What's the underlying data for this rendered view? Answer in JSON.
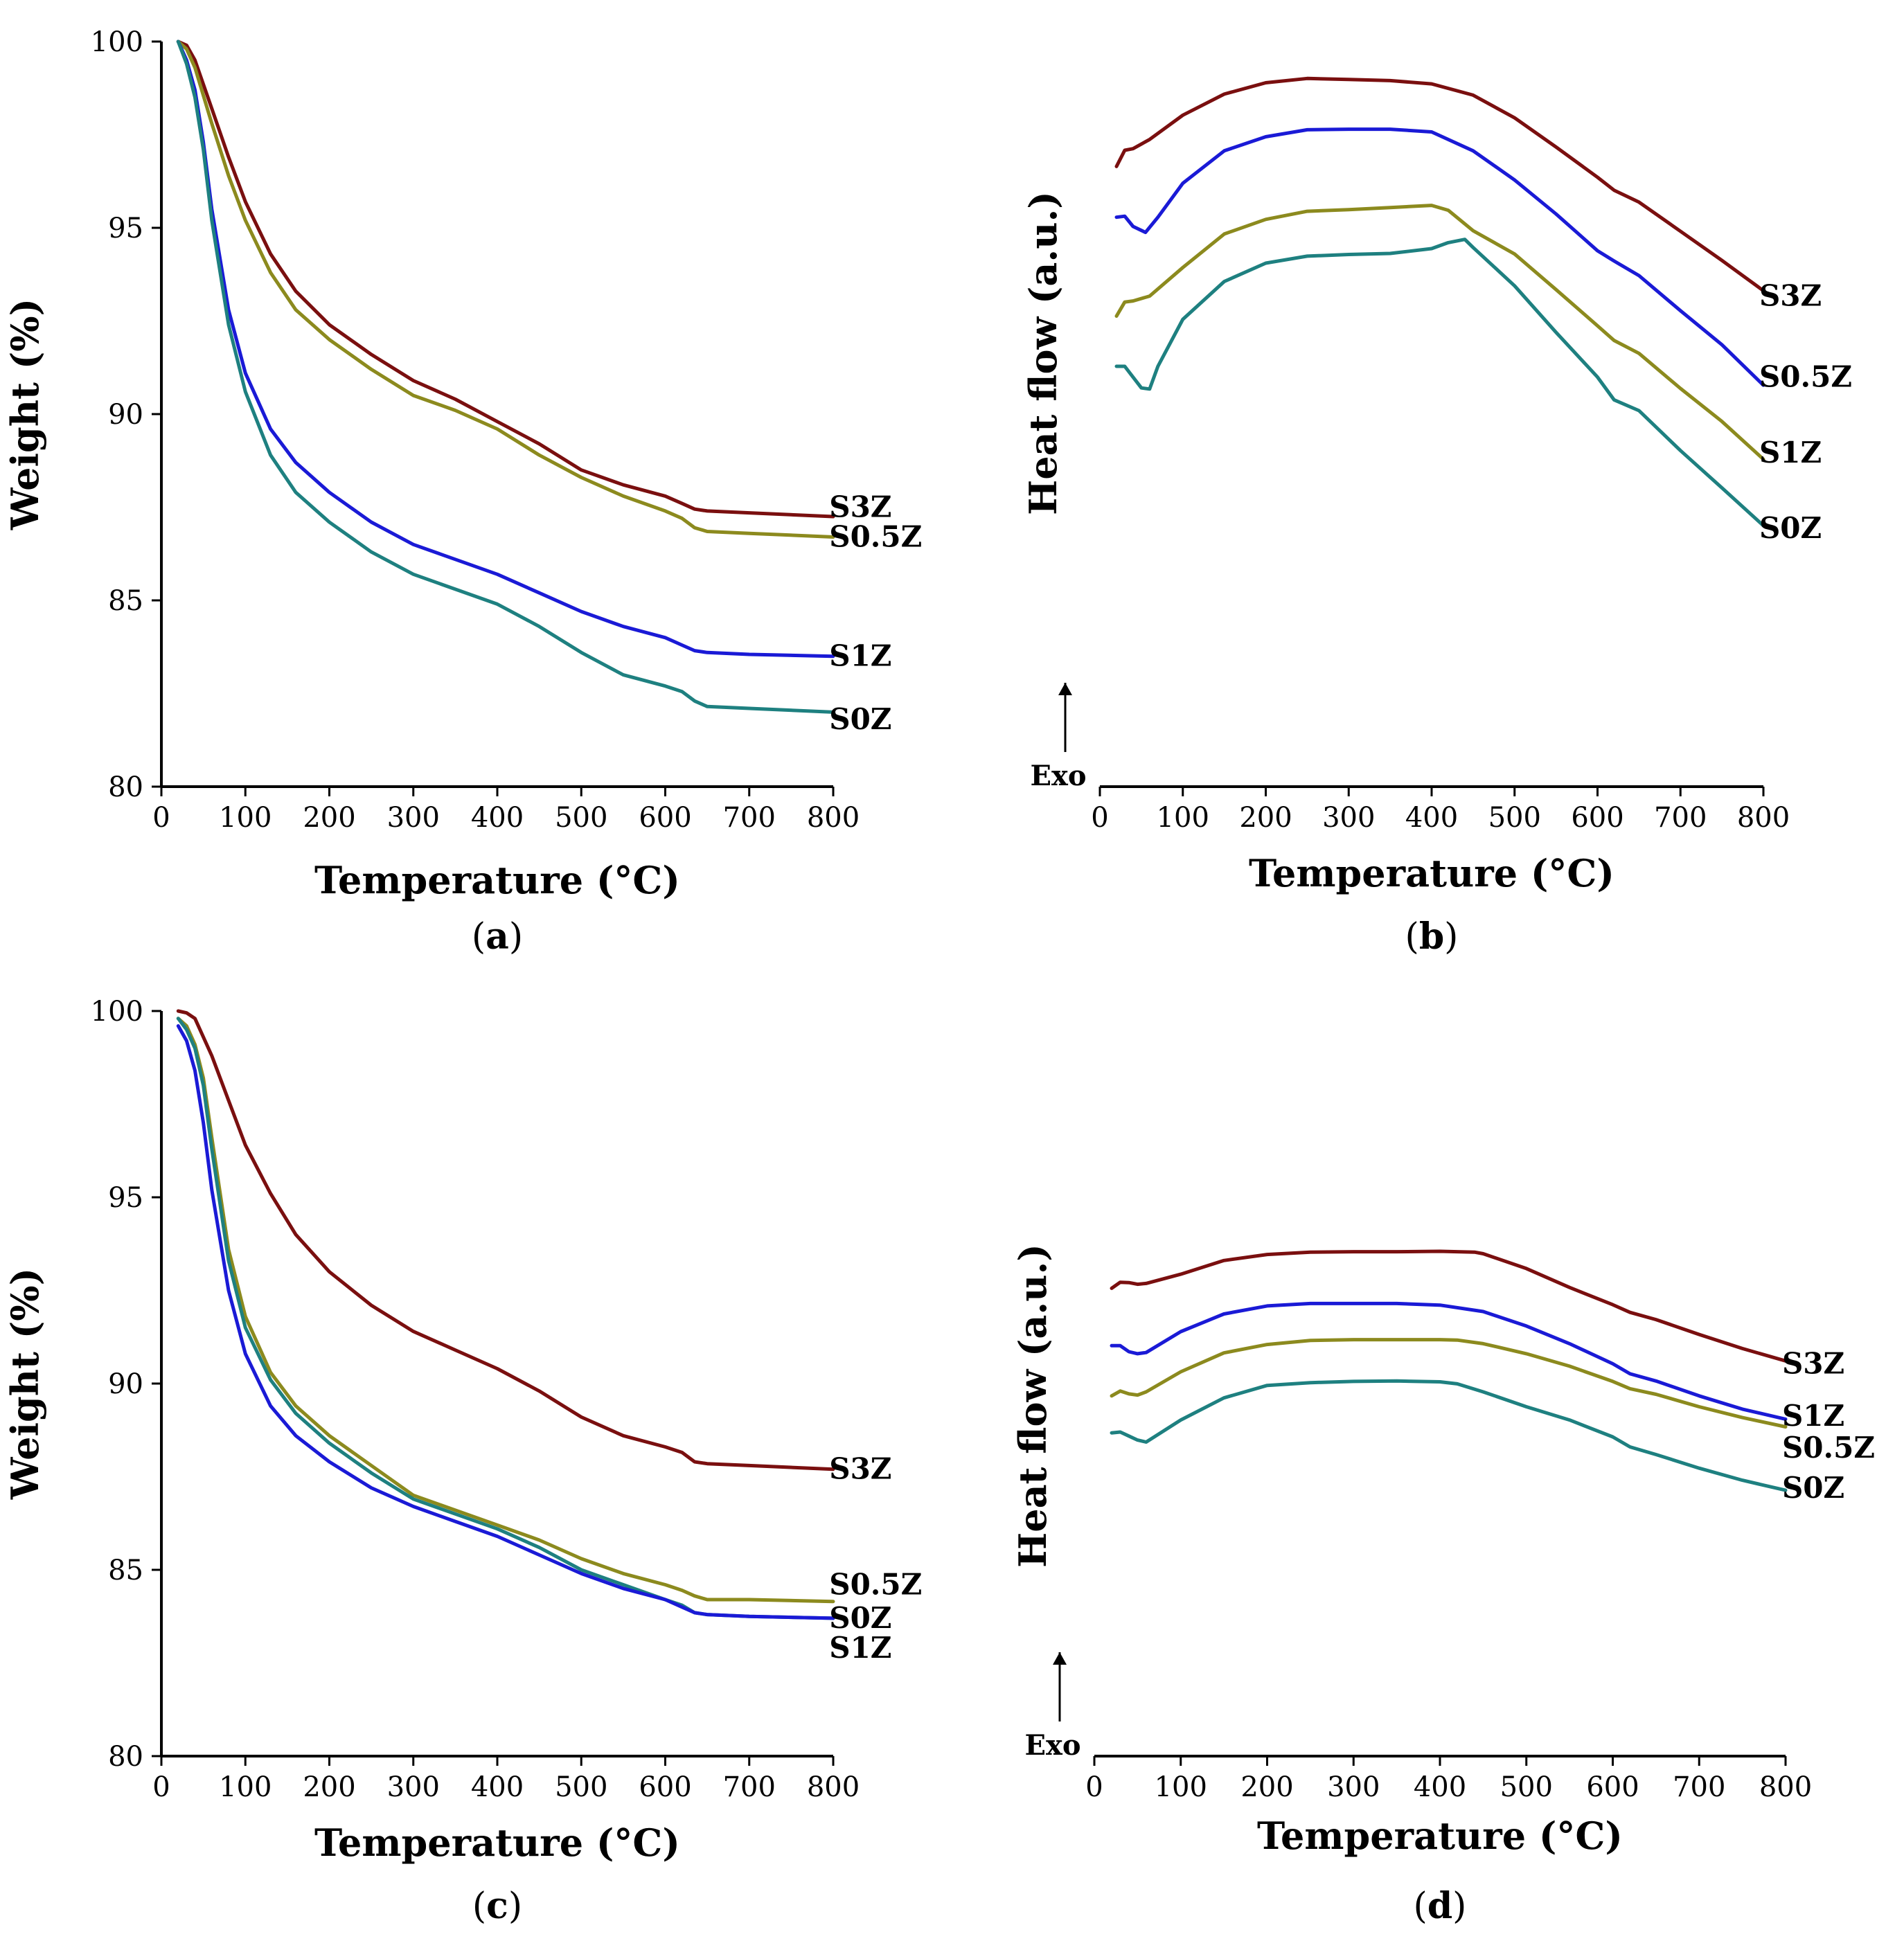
{
  "chart_data": [
    {
      "id": "a",
      "type": "line",
      "caption_letter": "a",
      "xlabel": "Temperature (°C)",
      "ylabel": "Weight (%)",
      "xlim": [
        0,
        800
      ],
      "ylim": [
        80,
        100
      ],
      "xticks": [
        0,
        100,
        200,
        300,
        400,
        500,
        600,
        700,
        800
      ],
      "yticks": [
        80,
        85,
        90,
        95,
        100
      ],
      "series": [
        {
          "name": "S3Z",
          "color": "#7a0f0f",
          "x": [
            20,
            30,
            40,
            60,
            80,
            100,
            130,
            160,
            200,
            250,
            300,
            350,
            400,
            450,
            500,
            550,
            600,
            620,
            635,
            650,
            700,
            800
          ],
          "y": [
            100,
            99.9,
            99.5,
            98.2,
            96.9,
            95.7,
            94.3,
            93.3,
            92.4,
            91.6,
            90.9,
            90.4,
            89.8,
            89.2,
            88.5,
            88.1,
            87.8,
            87.6,
            87.45,
            87.4,
            87.35,
            87.25
          ]
        },
        {
          "name": "S0.5Z",
          "color": "#8c8a1e",
          "x": [
            20,
            30,
            40,
            60,
            80,
            100,
            130,
            160,
            200,
            250,
            300,
            350,
            400,
            450,
            500,
            550,
            600,
            620,
            635,
            650,
            700,
            800
          ],
          "y": [
            100,
            99.8,
            99.3,
            97.8,
            96.4,
            95.2,
            93.8,
            92.8,
            92.0,
            91.2,
            90.5,
            90.1,
            89.6,
            88.9,
            88.3,
            87.8,
            87.4,
            87.2,
            86.95,
            86.85,
            86.8,
            86.7
          ]
        },
        {
          "name": "S1Z",
          "color": "#1a1ad6",
          "x": [
            20,
            30,
            40,
            50,
            60,
            80,
            100,
            130,
            160,
            200,
            250,
            300,
            350,
            400,
            450,
            500,
            550,
            600,
            620,
            635,
            650,
            700,
            800
          ],
          "y": [
            100,
            99.5,
            98.7,
            97.3,
            95.5,
            92.8,
            91.1,
            89.6,
            88.7,
            87.9,
            87.1,
            86.5,
            86.1,
            85.7,
            85.2,
            84.7,
            84.3,
            84.0,
            83.8,
            83.65,
            83.6,
            83.55,
            83.5
          ]
        },
        {
          "name": "S0Z",
          "color": "#1e8080",
          "x": [
            20,
            30,
            40,
            50,
            60,
            80,
            100,
            130,
            160,
            200,
            250,
            300,
            350,
            400,
            450,
            500,
            550,
            600,
            620,
            635,
            650,
            700,
            800
          ],
          "y": [
            100,
            99.4,
            98.5,
            97.1,
            95.2,
            92.4,
            90.6,
            88.9,
            87.9,
            87.1,
            86.3,
            85.7,
            85.3,
            84.9,
            84.3,
            83.6,
            83.0,
            82.7,
            82.55,
            82.3,
            82.15,
            82.1,
            82.0
          ]
        }
      ],
      "labels": [
        {
          "text": "S3Z",
          "at": [
            820,
            87.5
          ]
        },
        {
          "text": "S0.5Z",
          "at": [
            820,
            86.7
          ]
        },
        {
          "text": "S1Z",
          "at": [
            820,
            83.5
          ]
        },
        {
          "text": "S0Z",
          "at": [
            820,
            81.8
          ]
        }
      ]
    },
    {
      "id": "b",
      "type": "line",
      "caption_letter": "b",
      "xlabel": "Temperature (°C)",
      "ylabel": "Heat flow (a.u.)",
      "exo_label": "Exo",
      "xlim": [
        0,
        800
      ],
      "ylim": [
        0,
        100
      ],
      "xticks": [
        0,
        100,
        200,
        300,
        400,
        500,
        600,
        700,
        800
      ],
      "series": [
        {
          "name": "S3Z",
          "color": "#7a0f0f",
          "x": [
            20,
            30,
            40,
            60,
            100,
            150,
            200,
            250,
            300,
            350,
            400,
            450,
            500,
            550,
            600,
            620,
            650,
            700,
            750,
            800
          ],
          "y": [
            82,
            85,
            85.3,
            87,
            91.5,
            95.4,
            97.5,
            98.3,
            98.1,
            97.9,
            97.3,
            95.2,
            91.0,
            85.6,
            80.0,
            77.6,
            75.4,
            70.0,
            64.6,
            59.0
          ]
        },
        {
          "name": "S0.5Z",
          "color": "#1a1ad6",
          "x": [
            20,
            30,
            40,
            55,
            70,
            100,
            150,
            200,
            250,
            300,
            350,
            400,
            450,
            500,
            550,
            600,
            620,
            650,
            700,
            750,
            800
          ],
          "y": [
            72.6,
            72.8,
            70.9,
            69.8,
            72.6,
            78.9,
            84.9,
            87.5,
            88.8,
            88.9,
            88.9,
            88.4,
            84.9,
            79.5,
            73.2,
            66.4,
            64.5,
            61.8,
            55.3,
            49.0,
            41.5
          ]
        },
        {
          "name": "S1Z",
          "color": "#8c8a1e",
          "x": [
            20,
            30,
            40,
            60,
            100,
            150,
            200,
            250,
            300,
            350,
            400,
            420,
            450,
            500,
            550,
            600,
            620,
            650,
            700,
            750,
            800
          ],
          "y": [
            54.3,
            56.9,
            57.1,
            58,
            63.3,
            69.5,
            72.2,
            73.7,
            74.0,
            74.4,
            74.8,
            73.9,
            70.1,
            65.8,
            59.2,
            52.5,
            49.8,
            47.4,
            40.9,
            34.8,
            27.8
          ]
        },
        {
          "name": "S0Z",
          "color": "#1e8080",
          "x": [
            20,
            30,
            40,
            50,
            60,
            70,
            100,
            150,
            200,
            250,
            300,
            350,
            400,
            420,
            440,
            450,
            500,
            550,
            600,
            620,
            650,
            700,
            750,
            800
          ],
          "y": [
            45,
            45,
            43,
            41,
            40.8,
            45,
            53.7,
            60.7,
            64.1,
            65.4,
            65.7,
            65.9,
            66.8,
            67.9,
            68.5,
            67.0,
            59.9,
            51.3,
            43.0,
            38.8,
            36.8,
            29.4,
            22.5,
            15.5
          ]
        }
      ],
      "labels": [
        {
          "text": "S3Z",
          "at": [
            820,
            58
          ]
        },
        {
          "text": "S0.5Z",
          "at": [
            820,
            43
          ]
        },
        {
          "text": "S1Z",
          "at": [
            820,
            29
          ]
        },
        {
          "text": "S0Z",
          "at": [
            820,
            15
          ]
        }
      ]
    },
    {
      "id": "c",
      "type": "line",
      "caption_letter": "c",
      "xlabel": "Temperature (°C)",
      "ylabel": "Weight (%)",
      "xlim": [
        0,
        800
      ],
      "ylim": [
        80,
        100
      ],
      "xticks": [
        0,
        100,
        200,
        300,
        400,
        500,
        600,
        700,
        800
      ],
      "yticks": [
        80,
        85,
        90,
        95,
        100
      ],
      "series": [
        {
          "name": "S3Z",
          "color": "#7a0f0f",
          "x": [
            20,
            30,
            40,
            60,
            80,
            100,
            130,
            160,
            200,
            250,
            300,
            350,
            400,
            450,
            500,
            550,
            600,
            620,
            635,
            650,
            700,
            800
          ],
          "y": [
            100,
            99.95,
            99.8,
            98.8,
            97.6,
            96.4,
            95.1,
            94.0,
            93.0,
            92.1,
            91.4,
            90.9,
            90.4,
            89.8,
            89.1,
            88.6,
            88.3,
            88.15,
            87.9,
            87.85,
            87.8,
            87.7
          ]
        },
        {
          "name": "S0.5Z",
          "color": "#8c8a1e",
          "x": [
            20,
            30,
            40,
            50,
            60,
            80,
            100,
            130,
            160,
            200,
            250,
            300,
            350,
            400,
            450,
            500,
            550,
            600,
            620,
            635,
            650,
            700,
            800
          ],
          "y": [
            99.8,
            99.6,
            99.1,
            98.2,
            96.6,
            93.6,
            91.8,
            90.3,
            89.4,
            88.6,
            87.8,
            87.0,
            86.6,
            86.2,
            85.8,
            85.3,
            84.9,
            84.6,
            84.45,
            84.3,
            84.2,
            84.2,
            84.15
          ]
        },
        {
          "name": "S0Z",
          "color": "#1e8080",
          "x": [
            20,
            30,
            40,
            50,
            60,
            80,
            100,
            130,
            160,
            200,
            250,
            300,
            350,
            400,
            450,
            500,
            550,
            600,
            620,
            635,
            650,
            700,
            800
          ],
          "y": [
            99.8,
            99.5,
            99.0,
            98.0,
            96.3,
            93.3,
            91.5,
            90.1,
            89.2,
            88.4,
            87.6,
            86.9,
            86.5,
            86.1,
            85.6,
            85.0,
            84.6,
            84.2,
            84.05,
            83.85,
            83.8,
            83.75,
            83.7
          ]
        },
        {
          "name": "S1Z",
          "color": "#1a1ad6",
          "x": [
            20,
            30,
            40,
            50,
            60,
            80,
            100,
            130,
            160,
            200,
            250,
            300,
            350,
            400,
            450,
            500,
            550,
            600,
            620,
            635,
            650,
            700,
            800
          ],
          "y": [
            99.6,
            99.2,
            98.4,
            97.0,
            95.2,
            92.5,
            90.8,
            89.4,
            88.6,
            87.9,
            87.2,
            86.7,
            86.3,
            85.9,
            85.4,
            84.9,
            84.5,
            84.2,
            84.0,
            83.85,
            83.8,
            83.75,
            83.7
          ]
        }
      ],
      "labels": [
        {
          "text": "S3Z",
          "at": [
            820,
            87.7
          ]
        },
        {
          "text": "S0.5Z",
          "at": [
            820,
            84.6
          ]
        },
        {
          "text": "S0Z",
          "at": [
            820,
            83.7
          ]
        },
        {
          "text": "S1Z",
          "at": [
            820,
            82.9
          ]
        }
      ]
    },
    {
      "id": "d",
      "type": "line",
      "caption_letter": "d",
      "xlabel": "Temperature (°C)",
      "ylabel": "Heat flow (a.u.)",
      "exo_label": "Exo",
      "xlim": [
        0,
        800
      ],
      "ylim": [
        0,
        100
      ],
      "xticks": [
        0,
        100,
        200,
        300,
        400,
        500,
        600,
        700,
        800
      ],
      "series": [
        {
          "name": "S3Z",
          "color": "#7a0f0f",
          "x": [
            20,
            30,
            40,
            50,
            60,
            100,
            150,
            200,
            250,
            300,
            350,
            400,
            440,
            450,
            500,
            550,
            600,
            620,
            650,
            700,
            750,
            800
          ],
          "y": [
            75.8,
            77.3,
            77.2,
            76.8,
            77.0,
            79.3,
            82.7,
            84.2,
            84.8,
            84.9,
            84.9,
            85.0,
            84.8,
            84.4,
            80.7,
            76.0,
            71.7,
            69.8,
            68.0,
            64.3,
            60.8,
            57.7
          ]
        },
        {
          "name": "S1Z",
          "color": "#1a1ad6",
          "x": [
            20,
            30,
            40,
            50,
            60,
            100,
            150,
            200,
            250,
            300,
            350,
            400,
            450,
            500,
            550,
            600,
            620,
            650,
            700,
            750,
            800
          ],
          "y": [
            61.5,
            61.5,
            60.0,
            59.5,
            59.8,
            65.0,
            69.4,
            71.4,
            72.0,
            72.0,
            72.0,
            71.6,
            70.0,
            66.4,
            62.0,
            57.0,
            54.5,
            52.7,
            49.0,
            45.7,
            43.2
          ]
        },
        {
          "name": "S0.5Z",
          "color": "#8c8a1e",
          "x": [
            20,
            30,
            40,
            50,
            60,
            100,
            150,
            200,
            250,
            300,
            350,
            400,
            420,
            450,
            500,
            550,
            600,
            620,
            650,
            700,
            750,
            800
          ],
          "y": [
            49.0,
            50.2,
            49.5,
            49.2,
            50.0,
            55.0,
            59.7,
            61.8,
            62.8,
            63.0,
            63.0,
            63.0,
            62.9,
            62.0,
            59.5,
            56.4,
            52.6,
            50.8,
            49.4,
            46.3,
            43.6,
            41.3
          ]
        },
        {
          "name": "S0Z",
          "color": "#1e8080",
          "x": [
            20,
            30,
            40,
            50,
            60,
            100,
            150,
            200,
            250,
            300,
            350,
            400,
            420,
            450,
            500,
            550,
            600,
            620,
            650,
            700,
            750,
            800
          ],
          "y": [
            39.8,
            40.0,
            39.0,
            38.0,
            37.5,
            43.0,
            48.5,
            51.6,
            52.3,
            52.6,
            52.7,
            52.5,
            52.0,
            50.0,
            46.3,
            43.0,
            38.8,
            36.3,
            34.4,
            31.0,
            28.0,
            25.5
          ]
        }
      ],
      "labels": [
        {
          "text": "S3Z",
          "at": [
            820,
            57
          ]
        },
        {
          "text": "S1Z",
          "at": [
            820,
            44
          ]
        },
        {
          "text": "S0.5Z",
          "at": [
            820,
            36
          ]
        },
        {
          "text": "S0Z",
          "at": [
            820,
            26
          ]
        }
      ]
    }
  ]
}
